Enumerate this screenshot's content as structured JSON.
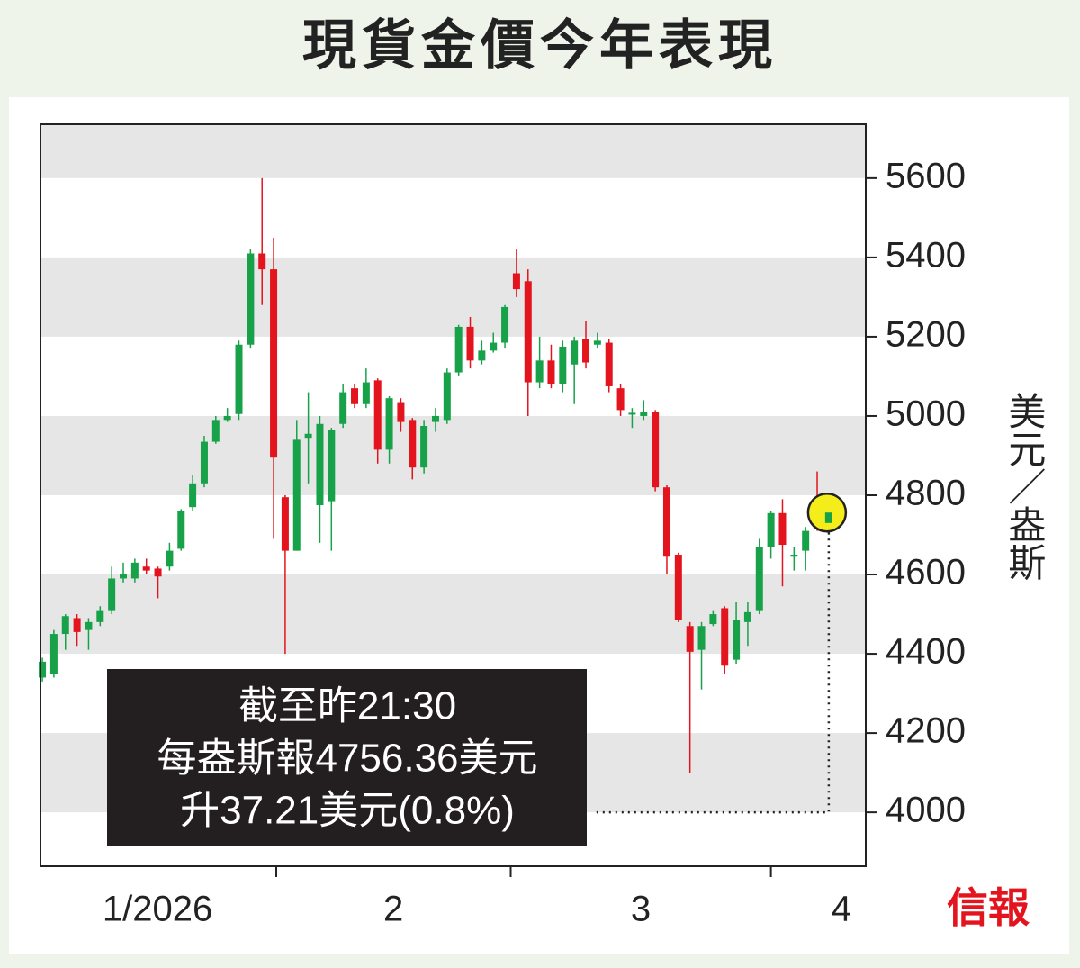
{
  "chart_data": {
    "type": "candlestick",
    "title": "現貨金價今年表現",
    "y_label": "美元／盎斯",
    "source": "信報",
    "annotation": [
      "截至昨21:30",
      "每盎斯報4756.36美元",
      "升37.21美元(0.8%)"
    ],
    "up_color": "#17a24a",
    "down_color": "#e3141d",
    "highlight_color": "#f5ec1b",
    "ylim": [
      3864,
      5736
    ],
    "yticks": [
      4000,
      4200,
      4400,
      4600,
      4800,
      5000,
      5200,
      5400,
      5600
    ],
    "xlim": [
      -0.16,
      71.2
    ],
    "month_ticks": [
      20.23,
      40.5,
      63.0
    ],
    "month_labels": [
      {
        "value": 9.96,
        "label": "1/2026"
      },
      {
        "value": 30.35,
        "label": "2"
      },
      {
        "value": 51.75,
        "label": "3"
      },
      {
        "value": 69.1,
        "label": "4"
      }
    ],
    "open": [
      4340,
      4350,
      4450,
      4490,
      4460,
      4480,
      4510,
      4590,
      4590,
      4620,
      4615,
      4620,
      4665,
      4770,
      4830,
      4935,
      4990,
      5005,
      5180,
      5410,
      5370,
      4795,
      4660,
      4945,
      4775,
      4785,
      4980,
      5070,
      5030,
      5090,
      4915,
      5035,
      4990,
      4870,
      4985,
      4990,
      5110,
      5225,
      5140,
      5165,
      5185,
      5360,
      5340,
      5085,
      5140,
      5080,
      5130,
      5195,
      5180,
      5185,
      5070,
      5005,
      5000,
      5010,
      4820,
      4650,
      4470,
      4410,
      4475,
      4515,
      4385,
      4480,
      4510,
      4670,
      4755,
      4645,
      4660,
      4745,
      4730
    ],
    "high": [
      4390,
      4460,
      4500,
      4500,
      4490,
      4520,
      4620,
      4630,
      4640,
      4640,
      4620,
      4680,
      4765,
      4850,
      4950,
      5000,
      5020,
      5190,
      5420,
      5600,
      5450,
      4800,
      4990,
      5060,
      5000,
      4970,
      5080,
      5080,
      5120,
      5095,
      5050,
      5045,
      4995,
      4990,
      5020,
      5120,
      5230,
      5250,
      5190,
      5210,
      5280,
      5420,
      5370,
      5200,
      5180,
      5190,
      5200,
      5240,
      5210,
      5195,
      5080,
      5020,
      5040,
      5015,
      4825,
      4655,
      4480,
      4480,
      4510,
      4520,
      4530,
      4530,
      4690,
      4760,
      4790,
      4670,
      4720,
      4860,
      4760
    ],
    "low": [
      4330,
      4340,
      4410,
      4420,
      4410,
      4470,
      4500,
      4580,
      4580,
      4600,
      4540,
      4610,
      4660,
      4760,
      4820,
      4930,
      4985,
      4990,
      5170,
      5280,
      4690,
      4400,
      4660,
      4830,
      4680,
      4660,
      4970,
      5020,
      5020,
      4880,
      4880,
      4960,
      4840,
      4855,
      4960,
      4980,
      5100,
      5120,
      5130,
      5160,
      5170,
      5300,
      5000,
      5070,
      5070,
      5060,
      5030,
      5120,
      5170,
      5060,
      5000,
      4970,
      4990,
      4810,
      4600,
      4480,
      4100,
      4310,
      4470,
      4350,
      4375,
      4420,
      4500,
      4640,
      4570,
      4610,
      4610,
      4710,
      4700
    ],
    "close": [
      4380,
      4450,
      4495,
      4455,
      4480,
      4510,
      4590,
      4600,
      4630,
      4610,
      4595,
      4660,
      4760,
      4830,
      4935,
      4990,
      5000,
      5180,
      5410,
      5370,
      4895,
      4660,
      4940,
      4955,
      4980,
      4965,
      5060,
      5030,
      5085,
      4915,
      5045,
      4985,
      4870,
      4975,
      5000,
      5110,
      5225,
      5140,
      5165,
      5185,
      5275,
      5320,
      5085,
      5140,
      5080,
      5175,
      5190,
      5135,
      5190,
      5075,
      5015,
      5008,
      5010,
      4820,
      4645,
      4485,
      4405,
      4470,
      4500,
      4370,
      4485,
      4505,
      4670,
      4755,
      4675,
      4650,
      4710,
      4720,
      4756.36
    ]
  }
}
